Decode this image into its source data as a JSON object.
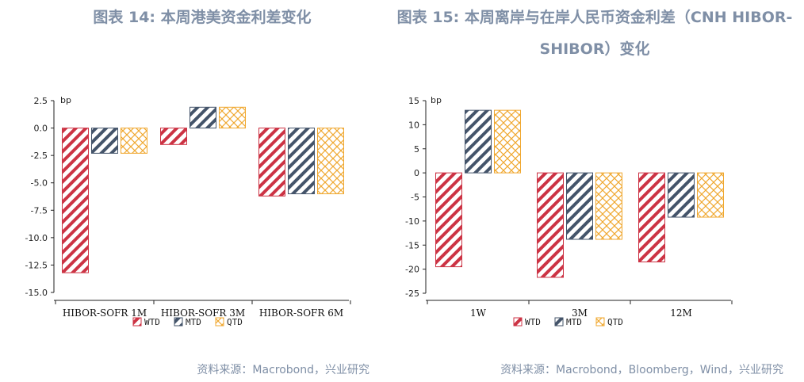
{
  "titles": {
    "left": "图表 14: 本周港美资金利差变化",
    "right": "图表 15: 本周离岸与在岸人民币资金利差（CNH HIBOR-SHIBOR）变化"
  },
  "sources": {
    "left": "资料来源：Macrobond，兴业研究",
    "right": "资料来源：Macrobond，Bloomberg，Wind，兴业研究"
  },
  "colors": {
    "wtd": "#cc3344",
    "mtd": "#44546a",
    "qtd": "#f0a830"
  },
  "chart_data": [
    {
      "type": "bar",
      "title": "图表 14: 本周港美资金利差变化",
      "unit": "bp",
      "categories": [
        "HIBOR-SOFR 1M",
        "HIBOR-SOFR 3M",
        "HIBOR-SOFR 6M"
      ],
      "series": [
        {
          "name": "WTD",
          "values": [
            -13.2,
            -1.5,
            -6.2
          ]
        },
        {
          "name": "MTD",
          "values": [
            -2.3,
            1.9,
            -6.0
          ]
        },
        {
          "name": "QTD",
          "values": [
            -2.3,
            1.9,
            -6.0
          ]
        }
      ],
      "ylim": [
        -15.0,
        2.5
      ],
      "yticks": [
        "2.5",
        "0.0",
        "-2.5",
        "-5.0",
        "-7.5",
        "-10.0",
        "-12.5",
        "-15.0"
      ],
      "ytick_values": [
        2.5,
        0,
        -2.5,
        -5,
        -7.5,
        -10,
        -12.5,
        -15
      ],
      "legend": [
        "WTD",
        "MTD",
        "QTD"
      ],
      "legend_position": "bottom",
      "grid": false
    },
    {
      "type": "bar",
      "title": "图表 15: 本周离岸与在岸人民币资金利差（CNH HIBOR-SHIBOR）变化",
      "unit": "bp",
      "categories": [
        "1W",
        "3M",
        "12M"
      ],
      "series": [
        {
          "name": "WTD",
          "values": [
            -19.5,
            -21.7,
            -18.5
          ]
        },
        {
          "name": "MTD",
          "values": [
            13.0,
            -13.8,
            -9.2
          ]
        },
        {
          "name": "QTD",
          "values": [
            13.0,
            -13.8,
            -9.2
          ]
        }
      ],
      "ylim": [
        -25,
        15
      ],
      "yticks": [
        "15",
        "10",
        "5",
        "0",
        "-5",
        "-10",
        "-15",
        "-20",
        "-25"
      ],
      "ytick_values": [
        15,
        10,
        5,
        0,
        -5,
        -10,
        -15,
        -20,
        -25
      ],
      "legend": [
        "WTD",
        "MTD",
        "QTD"
      ],
      "legend_position": "bottom",
      "grid": false
    }
  ]
}
